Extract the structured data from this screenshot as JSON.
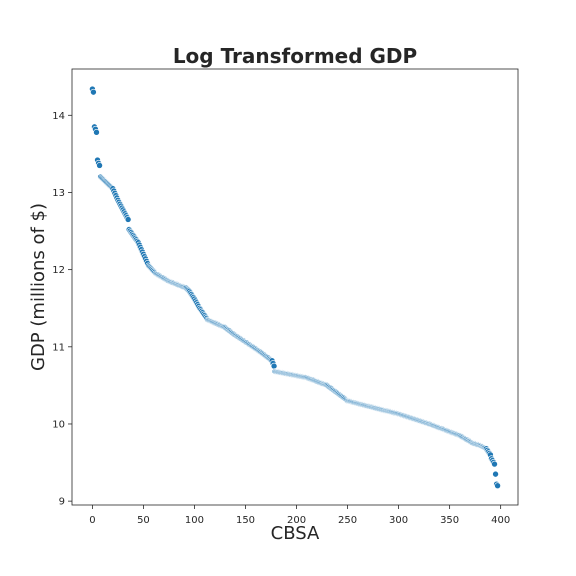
{
  "chart_data": {
    "type": "scatter",
    "title": "Log Transformed GDP",
    "xlabel": "CBSA",
    "ylabel": "GDP (millions of $)",
    "xlim": [
      -20,
      417
    ],
    "ylim": [
      8.95,
      14.6
    ],
    "xticks": [
      0,
      50,
      100,
      150,
      200,
      250,
      300,
      350,
      400
    ],
    "yticks": [
      9,
      10,
      11,
      12,
      13,
      14
    ],
    "grid": false,
    "marker_color": "#1f77b4",
    "series": [
      {
        "anchors_x": [
          0,
          1,
          2,
          3,
          4,
          5,
          6,
          7,
          8,
          20,
          25,
          35,
          36,
          45,
          55,
          62,
          75,
          92,
          95,
          100,
          105,
          113,
          130,
          140,
          165,
          176,
          178,
          179,
          210,
          230,
          250,
          270,
          300,
          330,
          360,
          373,
          380,
          386,
          390,
          391,
          394,
          396,
          397
        ],
        "anchors_y": [
          14.34,
          14.3,
          13.85,
          13.82,
          13.78,
          13.42,
          13.38,
          13.35,
          13.2,
          13.05,
          12.9,
          12.65,
          12.52,
          12.35,
          12.05,
          11.95,
          11.85,
          11.76,
          11.72,
          11.62,
          11.5,
          11.35,
          11.25,
          11.15,
          10.93,
          10.82,
          10.75,
          10.68,
          10.6,
          10.5,
          10.3,
          10.23,
          10.13,
          10.0,
          9.85,
          9.75,
          9.72,
          9.68,
          9.6,
          9.55,
          9.48,
          9.22,
          9.2
        ]
      }
    ]
  }
}
